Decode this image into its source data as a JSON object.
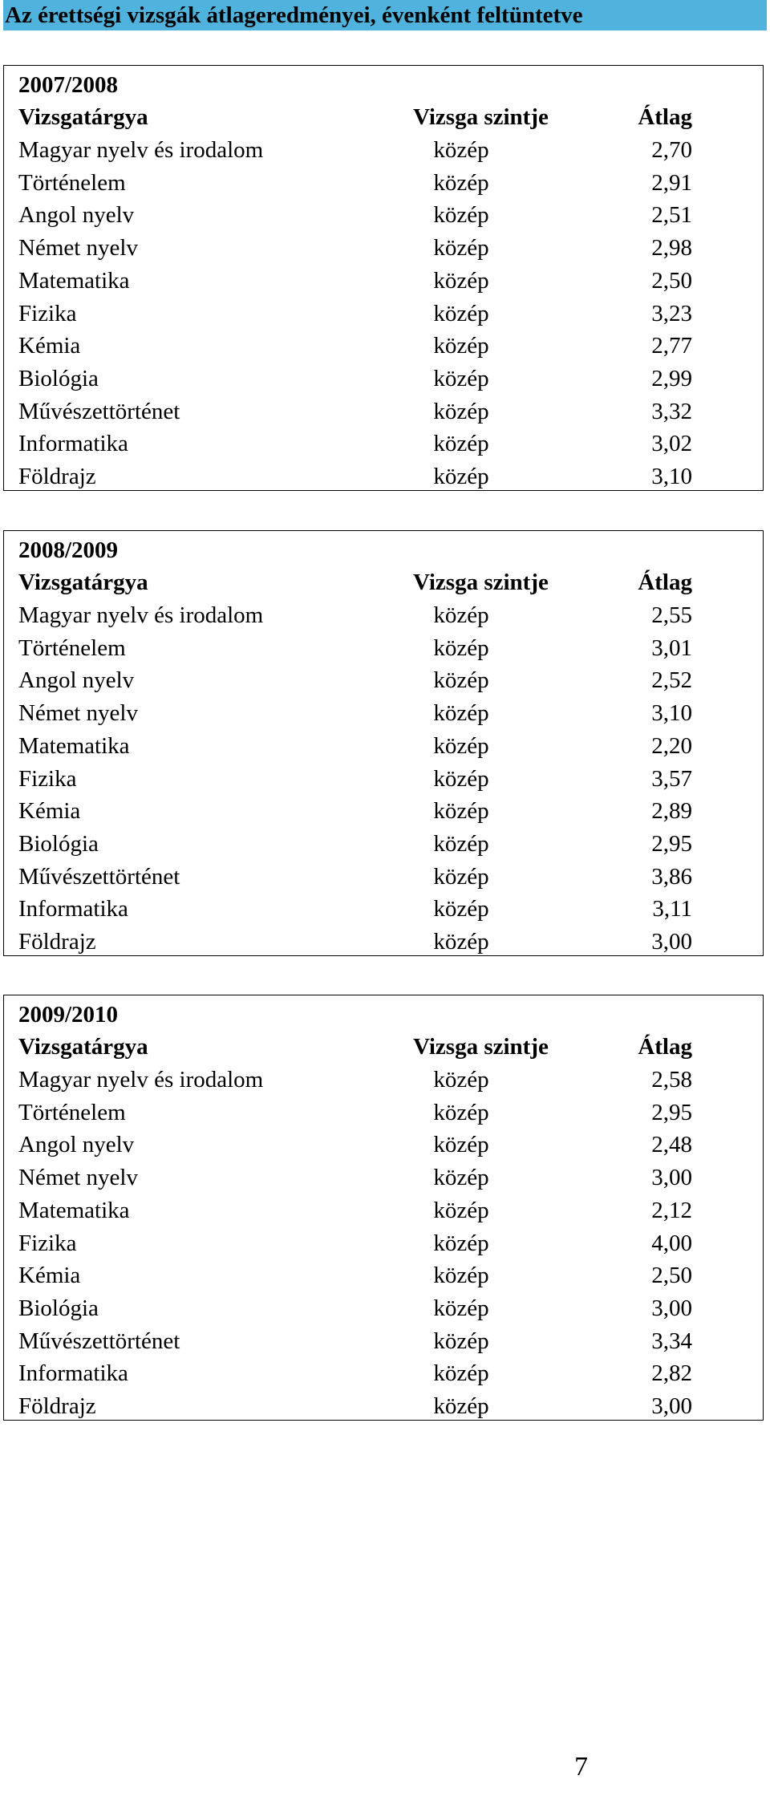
{
  "title": "Az érettségi vizsgák átlageredményei, évenként feltüntetve",
  "columns": {
    "subject": "Vizsgatárgya",
    "level": "Vizsga szintje",
    "average": "Átlag"
  },
  "years": [
    {
      "year": "2007/2008",
      "rows": [
        {
          "subject": "Magyar nyelv és irodalom",
          "level": "közép",
          "average": "2,70"
        },
        {
          "subject": "Történelem",
          "level": "közép",
          "average": "2,91"
        },
        {
          "subject": "Angol nyelv",
          "level": "közép",
          "average": "2,51"
        },
        {
          "subject": "Német nyelv",
          "level": "közép",
          "average": "2,98"
        },
        {
          "subject": "Matematika",
          "level": "közép",
          "average": "2,50"
        },
        {
          "subject": "Fizika",
          "level": "közép",
          "average": "3,23"
        },
        {
          "subject": "Kémia",
          "level": "közép",
          "average": "2,77"
        },
        {
          "subject": "Biológia",
          "level": "közép",
          "average": "2,99"
        },
        {
          "subject": "Művészettörténet",
          "level": "közép",
          "average": "3,32"
        },
        {
          "subject": "Informatika",
          "level": "közép",
          "average": "3,02"
        },
        {
          "subject": "Földrajz",
          "level": "közép",
          "average": "3,10"
        }
      ]
    },
    {
      "year": "2008/2009",
      "rows": [
        {
          "subject": "Magyar nyelv és irodalom",
          "level": "közép",
          "average": "2,55"
        },
        {
          "subject": "Történelem",
          "level": "közép",
          "average": "3,01"
        },
        {
          "subject": "Angol nyelv",
          "level": "közép",
          "average": "2,52"
        },
        {
          "subject": "Német nyelv",
          "level": "közép",
          "average": "3,10"
        },
        {
          "subject": "Matematika",
          "level": "közép",
          "average": "2,20"
        },
        {
          "subject": "Fizika",
          "level": "közép",
          "average": "3,57"
        },
        {
          "subject": "Kémia",
          "level": "közép",
          "average": "2,89"
        },
        {
          "subject": "Biológia",
          "level": "közép",
          "average": "2,95"
        },
        {
          "subject": "Művészettörténet",
          "level": "közép",
          "average": "3,86"
        },
        {
          "subject": "Informatika",
          "level": "közép",
          "average": "3,11"
        },
        {
          "subject": "Földrajz",
          "level": "közép",
          "average": "3,00"
        }
      ]
    },
    {
      "year": "2009/2010",
      "rows": [
        {
          "subject": "Magyar nyelv és irodalom",
          "level": "közép",
          "average": "2,58"
        },
        {
          "subject": "Történelem",
          "level": "közép",
          "average": "2,95"
        },
        {
          "subject": "Angol nyelv",
          "level": "közép",
          "average": "2,48"
        },
        {
          "subject": "Német nyelv",
          "level": "közép",
          "average": "3,00"
        },
        {
          "subject": "Matematika",
          "level": "közép",
          "average": "2,12"
        },
        {
          "subject": "Fizika",
          "level": "közép",
          "average": "4,00"
        },
        {
          "subject": "Kémia",
          "level": "közép",
          "average": "2,50"
        },
        {
          "subject": "Biológia",
          "level": "közép",
          "average": "3,00"
        },
        {
          "subject": "Művészettörténet",
          "level": "közép",
          "average": "3,34"
        },
        {
          "subject": "Informatika",
          "level": "közép",
          "average": "2,82"
        },
        {
          "subject": "Földrajz",
          "level": "közép",
          "average": "3,00"
        }
      ]
    }
  ],
  "page_number": "7",
  "colors": {
    "title_background": "#4fb3dd",
    "text": "#000000",
    "border": "#000000"
  }
}
